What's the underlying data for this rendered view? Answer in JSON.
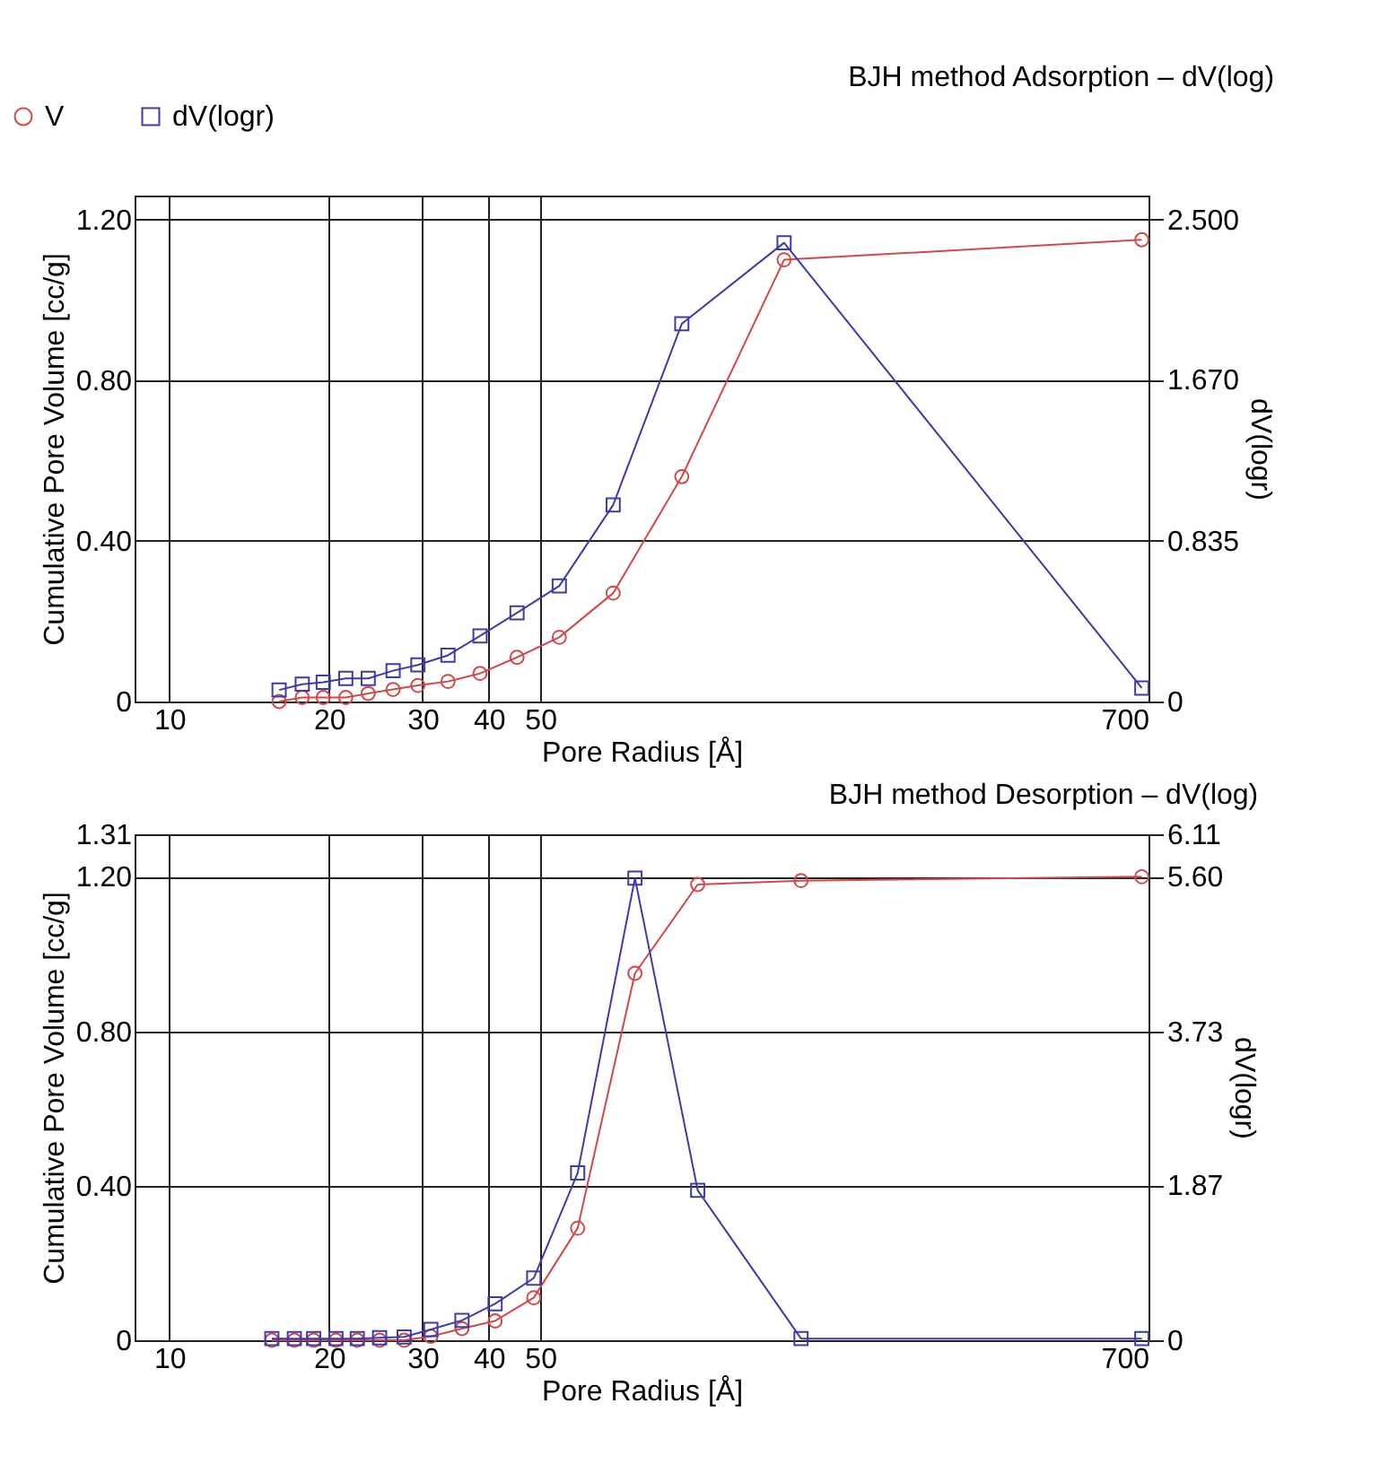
{
  "chart_data": [
    {
      "type": "line",
      "title": "BJH method Adsorption – dV(log)",
      "xlabel": "Pore Radius [Å]",
      "ylabel": "Cumulative Pore Volume [cc/g]",
      "y2label": "dV(logr)",
      "log": "x",
      "grid": true,
      "legend": "top left",
      "line_style": "solid",
      "xlim": [
        8.6,
        700
      ],
      "xticks": [
        10,
        20,
        30,
        40,
        50,
        700
      ],
      "ylim": [
        0,
        1.26
      ],
      "yticks": [
        {
          "value": 0,
          "label": "0"
        },
        {
          "value": 0.4,
          "label": "0.40"
        },
        {
          "value": 0.8,
          "label": "0.80"
        },
        {
          "value": 1.2,
          "label": "1.20"
        }
      ],
      "y2lim": [
        0,
        2.625
      ],
      "y2ticks": [
        {
          "value": 0,
          "label": "0"
        },
        0.835,
        {
          "value": 1.67,
          "label": "1.670"
        },
        {
          "value": 2.5,
          "label": "2.500"
        }
      ],
      "series": [
        {
          "name": "V",
          "color": "#d04848",
          "marker": "circle",
          "x": [
            16.1,
            17.8,
            19.5,
            21.5,
            23.7,
            26.4,
            29.4,
            33.5,
            38.5,
            45.2,
            54.3,
            68.6,
            92.4,
            144,
            680
          ],
          "values": [
            0.0,
            0.01,
            0.01,
            0.01,
            0.02,
            0.03,
            0.04,
            0.05,
            0.07,
            0.11,
            0.16,
            0.27,
            0.56,
            1.1,
            1.15
          ]
        },
        {
          "name": "dV(logr)",
          "color": "#3c3ca8",
          "marker": "square",
          "axis": "y2",
          "x": [
            16.1,
            17.8,
            19.5,
            21.5,
            23.7,
            26.4,
            29.4,
            33.5,
            38.5,
            45.2,
            54.3,
            68.6,
            92.4,
            144,
            680
          ],
          "values": [
            0.06,
            0.09,
            0.1,
            0.12,
            0.12,
            0.16,
            0.19,
            0.24,
            0.34,
            0.46,
            0.6,
            1.02,
            1.96,
            2.38,
            0.07
          ]
        }
      ]
    },
    {
      "type": "line",
      "title": "BJH method Desorption – dV(log)",
      "xlabel": "Pore Radius [Å]",
      "ylabel": "Cumulative Pore Volume [cc/g]",
      "y2label": "dV(logr)",
      "log": "x",
      "grid": true,
      "line_style": "solid",
      "xlim": [
        8.6,
        700
      ],
      "xticks": [
        10,
        20,
        30,
        40,
        50,
        700
      ],
      "ylim": [
        0,
        1.31
      ],
      "yticks": [
        {
          "value": 0,
          "label": "0"
        },
        {
          "value": 0.4,
          "label": "0.40"
        },
        {
          "value": 0.8,
          "label": "0.80"
        },
        {
          "value": 1.2,
          "label": "1.20"
        },
        1.31
      ],
      "y2lim": [
        0,
        6.11
      ],
      "y2ticks": [
        {
          "value": 0,
          "label": "0"
        },
        1.87,
        3.73,
        {
          "value": 5.6,
          "label": "5.60"
        },
        6.11
      ],
      "series": [
        {
          "color": "#d04848",
          "marker": "circle",
          "x": [
            15.6,
            17.2,
            18.7,
            20.6,
            22.6,
            24.9,
            27.7,
            31.1,
            35.6,
            41.1,
            48.6,
            58.8,
            75.4,
            99,
            155,
            680
          ],
          "values": [
            0,
            0,
            0,
            0,
            0,
            0,
            0,
            0.01,
            0.03,
            0.05,
            0.11,
            0.29,
            0.95,
            1.18,
            1.19,
            1.2
          ]
        },
        {
          "color": "#3c3ca8",
          "marker": "square",
          "axis": "y2",
          "x": [
            15.6,
            17.2,
            18.7,
            20.6,
            22.6,
            24.9,
            27.7,
            31.1,
            35.6,
            41.1,
            48.6,
            58.8,
            75.4,
            99,
            155,
            680
          ],
          "values": [
            0.02,
            0.02,
            0.02,
            0.02,
            0.02,
            0.03,
            0.04,
            0.13,
            0.24,
            0.44,
            0.75,
            2.02,
            5.58,
            1.81,
            0.02,
            0.02
          ]
        }
      ]
    }
  ]
}
